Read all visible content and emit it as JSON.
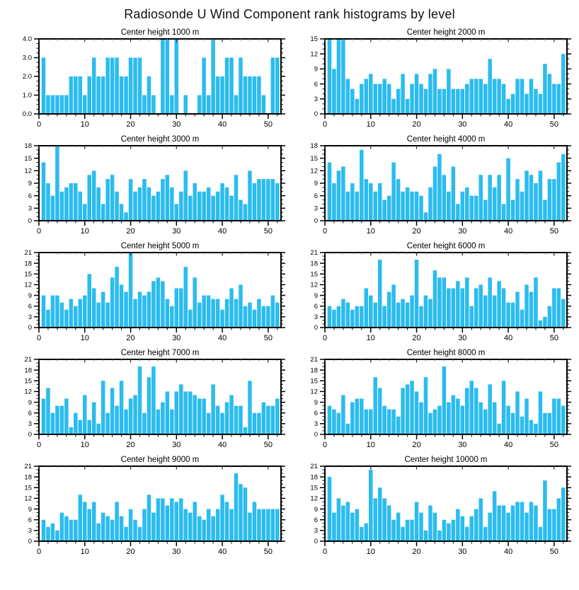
{
  "page_title": "Radiosonde U Wind Component rank histograms by level",
  "colors": {
    "bar": "#2bbcef",
    "axis": "#000000",
    "top_tick_major": "#333333",
    "top_tick_minor": "#888888",
    "title_text": "#111111"
  },
  "axes_style": {
    "x_major_ticks": [
      0,
      10,
      20,
      30,
      40,
      50
    ],
    "x_minor_step": 2,
    "xlim": [
      0,
      52.8
    ],
    "x_tick_labels": [
      "0",
      "10",
      "20",
      "30",
      "40",
      "50"
    ]
  },
  "chart_data": [
    {
      "type": "bar",
      "title": "Center height 1000 m",
      "xlabel": "",
      "ylabel": "",
      "ylim": [
        0,
        4
      ],
      "y_major_step": 1,
      "y_minor_step": 0.25,
      "y_decimals": 1,
      "values": [
        3,
        1,
        1,
        1,
        1,
        1,
        2,
        2,
        2,
        1,
        2,
        3,
        2,
        2,
        3,
        3,
        3,
        2,
        2,
        3,
        3,
        3,
        1,
        2,
        1,
        0,
        4,
        4,
        1,
        4,
        0,
        1,
        0,
        0,
        1,
        3,
        1,
        4,
        2,
        2,
        3,
        3,
        1,
        3,
        2,
        2,
        2,
        2,
        1,
        0,
        3,
        3
      ]
    },
    {
      "type": "bar",
      "title": "Center height 2000 m",
      "xlabel": "",
      "ylabel": "",
      "ylim": [
        0,
        15
      ],
      "y_major_step": 3,
      "y_minor_step": 1,
      "y_decimals": 0,
      "values": [
        15,
        9,
        15,
        15,
        7,
        5,
        3,
        6,
        7,
        8,
        6,
        6,
        7,
        6,
        3,
        5,
        8,
        3,
        6,
        8,
        6,
        5,
        8,
        9,
        5,
        5,
        9,
        5,
        5,
        5,
        6,
        7,
        7,
        7,
        6,
        11,
        7,
        7,
        6,
        3,
        4,
        7,
        7,
        4,
        7,
        5,
        4,
        10,
        8,
        6,
        6,
        12
      ]
    },
    {
      "type": "bar",
      "title": "Center height 3000 m",
      "xlabel": "",
      "ylabel": "",
      "ylim": [
        0,
        18
      ],
      "y_major_step": 3,
      "y_minor_step": 1,
      "y_decimals": 0,
      "values": [
        14,
        9,
        6,
        18,
        7,
        8,
        9,
        9,
        7,
        4,
        11,
        12,
        8,
        4,
        10,
        11,
        7,
        4,
        2,
        10,
        7,
        8,
        10,
        8,
        6,
        7,
        10,
        11,
        8,
        4,
        7,
        12,
        6,
        9,
        7,
        7,
        8,
        6,
        7,
        9,
        8,
        6,
        11,
        5,
        4,
        12,
        9,
        10,
        10,
        10,
        10,
        9
      ]
    },
    {
      "type": "bar",
      "title": "Center height 4000 m",
      "xlabel": "",
      "ylabel": "",
      "ylim": [
        0,
        18
      ],
      "y_major_step": 3,
      "y_minor_step": 1,
      "y_decimals": 0,
      "values": [
        14,
        9,
        12,
        13,
        7,
        9,
        7,
        17,
        10,
        9,
        7,
        9,
        5,
        6,
        14,
        10,
        7,
        8,
        7,
        7,
        6,
        2,
        8,
        13,
        16,
        11,
        7,
        13,
        4,
        7,
        8,
        6,
        6,
        11,
        5,
        11,
        8,
        11,
        4,
        15,
        5,
        10,
        7,
        12,
        11,
        9,
        12,
        5,
        10,
        10,
        14,
        16
      ]
    },
    {
      "type": "bar",
      "title": "Center height 5000 m",
      "xlabel": "",
      "ylabel": "",
      "ylim": [
        0,
        21
      ],
      "y_major_step": 3,
      "y_minor_step": 1,
      "y_decimals": 0,
      "values": [
        9,
        5,
        9,
        9,
        7,
        5,
        8,
        6,
        8,
        9,
        15,
        11,
        7,
        10,
        7,
        14,
        17,
        12,
        10,
        21,
        8,
        10,
        9,
        10,
        13,
        14,
        13,
        8,
        6,
        11,
        11,
        17,
        5,
        14,
        7,
        9,
        9,
        8,
        8,
        5,
        8,
        11,
        8,
        12,
        6,
        7,
        5,
        8,
        6,
        6,
        9,
        7
      ]
    },
    {
      "type": "bar",
      "title": "Center height 6000 m",
      "xlabel": "",
      "ylabel": "",
      "ylim": [
        0,
        21
      ],
      "y_major_step": 3,
      "y_minor_step": 1,
      "y_decimals": 0,
      "values": [
        6,
        5,
        6,
        8,
        7,
        5,
        6,
        6,
        11,
        9,
        7,
        19,
        6,
        10,
        12,
        7,
        8,
        7,
        9,
        19,
        6,
        9,
        8,
        16,
        14,
        14,
        11,
        11,
        13,
        11,
        14,
        6,
        11,
        12,
        9,
        14,
        9,
        13,
        11,
        7,
        7,
        10,
        5,
        12,
        10,
        14,
        2,
        3,
        6,
        11,
        11,
        8
      ]
    },
    {
      "type": "bar",
      "title": "Center height 7000 m",
      "xlabel": "",
      "ylabel": "",
      "ylim": [
        0,
        21
      ],
      "y_major_step": 3,
      "y_minor_step": 1,
      "y_decimals": 0,
      "values": [
        10,
        13,
        6,
        8,
        8,
        10,
        2,
        6,
        4,
        11,
        4,
        9,
        3,
        15,
        6,
        13,
        8,
        15,
        7,
        10,
        11,
        19,
        6,
        16,
        19,
        7,
        9,
        12,
        7,
        12,
        14,
        12,
        12,
        11,
        10,
        10,
        6,
        14,
        8,
        6,
        9,
        11,
        8,
        8,
        2,
        15,
        6,
        6,
        9,
        8,
        8,
        10
      ]
    },
    {
      "type": "bar",
      "title": "Center height 8000 m",
      "xlabel": "",
      "ylabel": "",
      "ylim": [
        0,
        21
      ],
      "y_major_step": 3,
      "y_minor_step": 1,
      "y_decimals": 0,
      "values": [
        8,
        7,
        6,
        11,
        3,
        9,
        10,
        10,
        7,
        7,
        16,
        13,
        8,
        7,
        7,
        5,
        13,
        14,
        15,
        12,
        9,
        16,
        6,
        7,
        8,
        19,
        9,
        11,
        10,
        8,
        13,
        15,
        13,
        9,
        7,
        14,
        9,
        3,
        15,
        8,
        6,
        12,
        5,
        10,
        4,
        3,
        12,
        6,
        6,
        10,
        10,
        8
      ]
    },
    {
      "type": "bar",
      "title": "Center height 9000 m",
      "xlabel": "",
      "ylabel": "",
      "ylim": [
        0,
        21
      ],
      "y_major_step": 3,
      "y_minor_step": 1,
      "y_decimals": 0,
      "values": [
        6,
        4,
        5,
        3,
        8,
        7,
        6,
        6,
        13,
        11,
        9,
        11,
        5,
        8,
        7,
        6,
        11,
        7,
        4,
        9,
        6,
        4,
        9,
        13,
        8,
        12,
        12,
        10,
        12,
        11,
        12,
        9,
        8,
        11,
        7,
        6,
        9,
        7,
        9,
        13,
        11,
        9,
        19,
        16,
        15,
        8,
        11,
        9,
        9,
        9,
        9,
        9
      ]
    },
    {
      "type": "bar",
      "title": "Center height 10000 m",
      "xlabel": "",
      "ylabel": "",
      "ylim": [
        0,
        21
      ],
      "y_major_step": 3,
      "y_minor_step": 1,
      "y_decimals": 0,
      "values": [
        18,
        8,
        12,
        10,
        11,
        8,
        9,
        4,
        5,
        20,
        12,
        15,
        12,
        10,
        6,
        8,
        4,
        6,
        6,
        11,
        8,
        3,
        10,
        8,
        3,
        6,
        5,
        6,
        9,
        7,
        4,
        7,
        9,
        12,
        4,
        8,
        14,
        10,
        10,
        8,
        10,
        11,
        11,
        8,
        11,
        10,
        4,
        17,
        9,
        9,
        12,
        15
      ]
    }
  ]
}
